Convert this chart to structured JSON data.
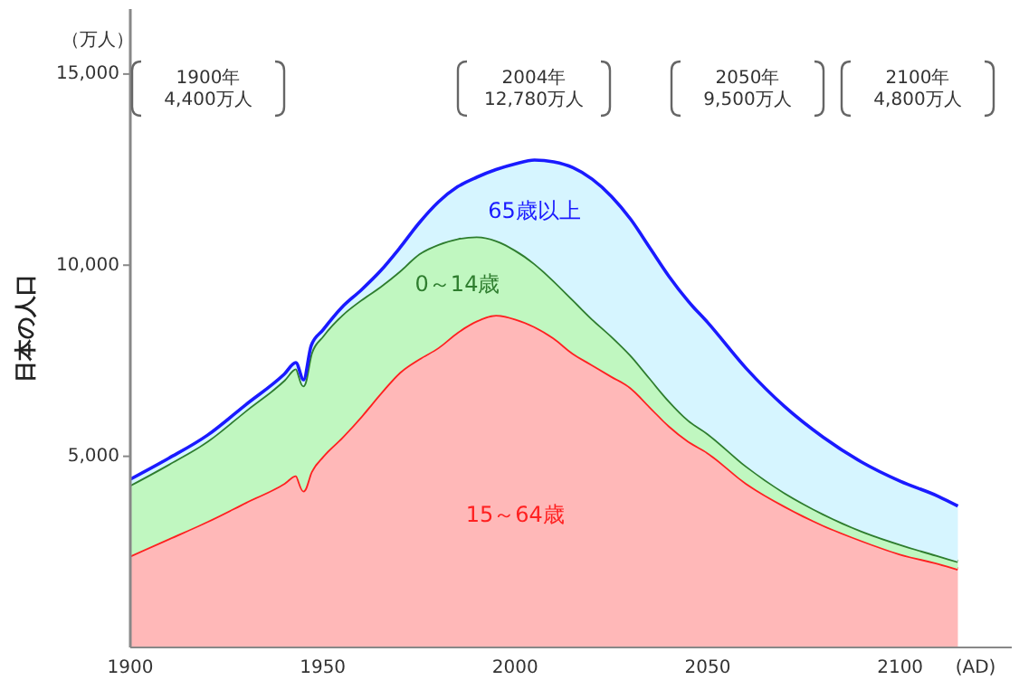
{
  "chart_data": {
    "type": "area",
    "stacked": true,
    "ylabel": "日本の人口",
    "xlabel": "(AD)",
    "annotations": [
      "（万人）",
      "1900年\n4,400万人",
      "2004年\n12,780万人",
      "2050年\n9,500万人",
      "2100年\n4,800万人"
    ],
    "x": [
      1900,
      1910,
      1920,
      1930,
      1940,
      1943,
      1945,
      1947,
      1950,
      1955,
      1960,
      1965,
      1970,
      1975,
      1980,
      1985,
      1990,
      1995,
      2000,
      2005,
      2010,
      2015,
      2020,
      2025,
      2030,
      2035,
      2040,
      2045,
      2050,
      2060,
      2070,
      2080,
      2090,
      2100,
      2110,
      2115
    ],
    "series": [
      {
        "name": "15～64歳",
        "color": "#ff2020",
        "values": [
          2400,
          2850,
          3300,
          3800,
          4300,
          4500,
          4100,
          4600,
          5000,
          5500,
          6050,
          6650,
          7200,
          7550,
          7850,
          8250,
          8550,
          8700,
          8600,
          8400,
          8100,
          7700,
          7400,
          7100,
          6800,
          6300,
          5800,
          5400,
          5100,
          4300,
          3700,
          3200,
          2800,
          2450,
          2200,
          2050
        ]
      },
      {
        "name": "0～14歳",
        "color": "#2e7d2e",
        "values": [
          1850,
          1950,
          2100,
          2400,
          2700,
          2800,
          2750,
          3100,
          3150,
          3200,
          3050,
          2800,
          2650,
          2750,
          2700,
          2450,
          2200,
          1950,
          1800,
          1650,
          1500,
          1400,
          1200,
          1050,
          850,
          750,
          650,
          550,
          500,
          450,
          350,
          300,
          250,
          250,
          200,
          200
        ]
      },
      {
        "name": "65歳以上",
        "color": "#1a1aff",
        "values": [
          150,
          150,
          150,
          150,
          150,
          150,
          150,
          200,
          150,
          200,
          250,
          400,
          600,
          800,
          1100,
          1350,
          1550,
          1850,
          2250,
          2700,
          3100,
          3450,
          3650,
          3650,
          3550,
          3400,
          3250,
          3100,
          2900,
          2550,
          2250,
          2000,
          1800,
          1650,
          1550,
          1450
        ]
      }
    ],
    "xlim": [
      1900,
      2129
    ],
    "ylim": [
      0,
      16700
    ],
    "xticks": [
      1900,
      1950,
      2000,
      2050,
      2100
    ],
    "yticks": [
      {
        "value": 5000,
        "label": "5,000"
      },
      {
        "value": 10000,
        "label": "10,000"
      },
      {
        "value": 15000,
        "label": "15,000"
      }
    ],
    "grid": false
  }
}
